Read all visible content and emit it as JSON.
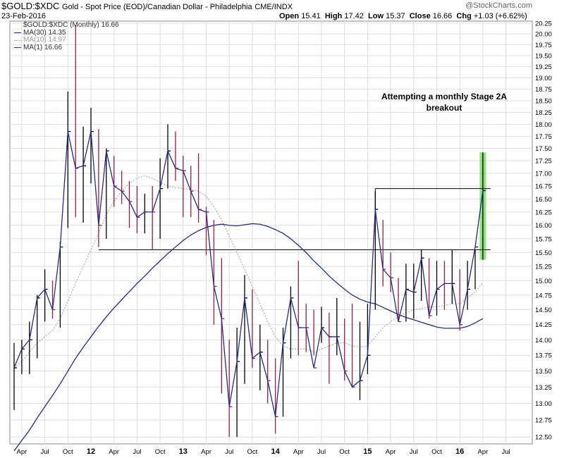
{
  "header": {
    "symbol": "$GOLD:$XDC",
    "description": "Gold - Spot Price (EOD)/Canadian Dollar - Philadelphia",
    "exchange": "CME/INDX",
    "date": "23-Feb-2016",
    "watermark": "@StockCharts.com",
    "open_label": "Open",
    "open_value": "15.41",
    "high_label": "High",
    "high_value": "17.42",
    "low_label": "Low",
    "low_value": "15.37",
    "close_label": "Close",
    "close_value": "16.66",
    "chg_label": "Chg",
    "chg_value": "+1.03 (+6.62%)"
  },
  "legend": [
    {
      "text": "$GOLD:$XDC (Monthly) 16.66",
      "style": "none",
      "color": "#000000"
    },
    {
      "text": "MA(30) 14.35",
      "style": "solid",
      "color": "#1f2d8a"
    },
    {
      "text": "MA(10) 14.97",
      "style": "dotted",
      "color": "#999999"
    },
    {
      "text": "MA(1) 16.66",
      "style": "solid",
      "color": "#1f2d8a"
    }
  ],
  "annotation": {
    "line1": "Attempting a monthly Stage 2A",
    "line2": "breakout"
  },
  "colors": {
    "up_bar": "#000000",
    "down_bar": "#9b1b4b",
    "ma_line": "#1f2d8a",
    "ma10_line": "#aaaaaa",
    "highlight": "#7ddc6a",
    "grid": "#dddddd"
  },
  "chart_data": {
    "type": "ohlc",
    "frequency": "monthly",
    "ylim": [
      12.4,
      20.3
    ],
    "yscale": "log",
    "y_ticks": [
      12.5,
      12.75,
      13.0,
      13.25,
      13.5,
      13.75,
      14.0,
      14.25,
      14.5,
      14.75,
      15.0,
      15.25,
      15.5,
      15.75,
      16.0,
      16.25,
      16.5,
      16.75,
      17.0,
      17.25,
      17.5,
      17.75,
      18.0,
      18.25,
      18.5,
      18.75,
      19.0,
      19.25,
      19.5,
      19.75,
      20.0,
      20.25
    ],
    "x_ticks": [
      {
        "label": "Apr",
        "index": 1
      },
      {
        "label": "Jul",
        "index": 4
      },
      {
        "label": "Oct",
        "index": 7
      },
      {
        "label": "12",
        "index": 10,
        "bold": true
      },
      {
        "label": "Apr",
        "index": 13
      },
      {
        "label": "Jul",
        "index": 16
      },
      {
        "label": "Oct",
        "index": 19
      },
      {
        "label": "13",
        "index": 22,
        "bold": true
      },
      {
        "label": "Apr",
        "index": 25
      },
      {
        "label": "Jul",
        "index": 28
      },
      {
        "label": "Oct",
        "index": 31
      },
      {
        "label": "14",
        "index": 34,
        "bold": true
      },
      {
        "label": "Apr",
        "index": 37
      },
      {
        "label": "Jul",
        "index": 40
      },
      {
        "label": "Oct",
        "index": 43
      },
      {
        "label": "15",
        "index": 46,
        "bold": true
      },
      {
        "label": "Apr",
        "index": 49
      },
      {
        "label": "Jul",
        "index": 52
      },
      {
        "label": "Oct",
        "index": 55
      },
      {
        "label": "16",
        "index": 58,
        "bold": true
      },
      {
        "label": "Apr",
        "index": 61
      },
      {
        "label": "Jul",
        "index": 64
      }
    ],
    "bars": [
      {
        "h": 13.95,
        "l": 12.9,
        "c": 13.55,
        "up": true
      },
      {
        "h": 14.0,
        "l": 13.45,
        "c": 13.85,
        "up": true
      },
      {
        "h": 14.3,
        "l": 13.45,
        "c": 14.0,
        "up": true
      },
      {
        "h": 14.75,
        "l": 13.7,
        "c": 14.7,
        "up": true
      },
      {
        "h": 15.2,
        "l": 14.3,
        "c": 14.85,
        "up": true
      },
      {
        "h": 15.0,
        "l": 14.35,
        "c": 14.5,
        "up": false
      },
      {
        "h": 15.7,
        "l": 14.2,
        "c": 15.6,
        "up": true
      },
      {
        "h": 18.7,
        "l": 15.95,
        "c": 17.85,
        "up": true
      },
      {
        "h": 20.2,
        "l": 16.15,
        "c": 17.1,
        "up": false
      },
      {
        "h": 17.95,
        "l": 16.05,
        "c": 17.15,
        "up": true
      },
      {
        "h": 18.35,
        "l": 16.8,
        "c": 17.85,
        "up": true
      },
      {
        "h": 17.9,
        "l": 15.6,
        "c": 16.0,
        "up": false
      },
      {
        "h": 17.5,
        "l": 15.75,
        "c": 17.45,
        "up": true
      },
      {
        "h": 17.35,
        "l": 16.35,
        "c": 16.75,
        "up": false
      },
      {
        "h": 17.05,
        "l": 16.4,
        "c": 16.65,
        "up": false
      },
      {
        "h": 16.85,
        "l": 15.95,
        "c": 16.45,
        "up": false
      },
      {
        "h": 16.75,
        "l": 15.85,
        "c": 16.15,
        "up": false
      },
      {
        "h": 16.6,
        "l": 15.85,
        "c": 16.25,
        "up": true
      },
      {
        "h": 16.75,
        "l": 15.55,
        "c": 16.25,
        "up": false
      },
      {
        "h": 17.3,
        "l": 15.75,
        "c": 16.7,
        "up": true
      },
      {
        "h": 18.0,
        "l": 16.7,
        "c": 17.45,
        "up": true
      },
      {
        "h": 17.85,
        "l": 16.85,
        "c": 17.1,
        "up": false
      },
      {
        "h": 17.35,
        "l": 16.15,
        "c": 17.05,
        "up": false
      },
      {
        "h": 17.15,
        "l": 16.15,
        "c": 16.65,
        "up": false
      },
      {
        "h": 17.4,
        "l": 16.05,
        "c": 16.3,
        "up": false
      },
      {
        "h": 16.35,
        "l": 15.45,
        "c": 16.25,
        "up": false
      },
      {
        "h": 16.1,
        "l": 14.25,
        "c": 14.9,
        "up": false
      },
      {
        "h": 15.4,
        "l": 13.15,
        "c": 14.35,
        "up": false
      },
      {
        "h": 14.0,
        "l": 12.5,
        "c": 12.95,
        "up": false
      },
      {
        "h": 14.2,
        "l": 12.5,
        "c": 13.65,
        "up": true
      },
      {
        "h": 15.1,
        "l": 13.3,
        "c": 14.7,
        "up": true
      },
      {
        "h": 14.85,
        "l": 13.55,
        "c": 13.7,
        "up": false
      },
      {
        "h": 14.25,
        "l": 13.2,
        "c": 13.8,
        "up": true
      },
      {
        "h": 14.0,
        "l": 13.0,
        "c": 13.35,
        "up": false
      },
      {
        "h": 13.7,
        "l": 12.55,
        "c": 12.8,
        "up": false
      },
      {
        "h": 14.2,
        "l": 12.8,
        "c": 13.95,
        "up": true
      },
      {
        "h": 14.9,
        "l": 13.7,
        "c": 14.7,
        "up": true
      },
      {
        "h": 15.35,
        "l": 13.75,
        "c": 14.2,
        "up": false
      },
      {
        "h": 14.6,
        "l": 13.8,
        "c": 14.2,
        "up": false
      },
      {
        "h": 14.5,
        "l": 13.75,
        "c": 13.55,
        "up": false
      },
      {
        "h": 14.55,
        "l": 13.95,
        "c": 14.2,
        "up": true
      },
      {
        "h": 14.45,
        "l": 13.3,
        "c": 14.05,
        "up": false
      },
      {
        "h": 14.7,
        "l": 13.75,
        "c": 14.05,
        "up": true
      },
      {
        "h": 14.35,
        "l": 13.35,
        "c": 13.5,
        "up": false
      },
      {
        "h": 14.6,
        "l": 13.25,
        "c": 13.25,
        "up": false
      },
      {
        "h": 14.3,
        "l": 13.05,
        "c": 13.35,
        "up": true
      },
      {
        "h": 14.6,
        "l": 13.45,
        "c": 13.75,
        "up": true
      },
      {
        "h": 16.65,
        "l": 14.5,
        "c": 16.3,
        "up": true
      },
      {
        "h": 16.1,
        "l": 14.9,
        "c": 15.2,
        "up": false
      },
      {
        "h": 15.5,
        "l": 14.8,
        "c": 15.05,
        "up": false
      },
      {
        "h": 15.05,
        "l": 14.3,
        "c": 14.3,
        "up": false
      },
      {
        "h": 15.3,
        "l": 14.3,
        "c": 14.85,
        "up": true
      },
      {
        "h": 15.3,
        "l": 14.35,
        "c": 14.8,
        "up": true
      },
      {
        "h": 15.55,
        "l": 14.65,
        "c": 15.4,
        "up": true
      },
      {
        "h": 15.4,
        "l": 14.35,
        "c": 14.4,
        "up": false
      },
      {
        "h": 15.35,
        "l": 14.4,
        "c": 14.85,
        "up": true
      },
      {
        "h": 15.35,
        "l": 14.5,
        "c": 14.95,
        "up": false
      },
      {
        "h": 15.55,
        "l": 14.6,
        "c": 14.95,
        "up": true
      },
      {
        "h": 15.2,
        "l": 14.15,
        "c": 14.25,
        "up": false
      },
      {
        "h": 15.35,
        "l": 14.5,
        "c": 14.85,
        "up": true
      },
      {
        "h": 15.55,
        "l": 14.85,
        "c": 15.6,
        "up": true
      },
      {
        "h": 17.42,
        "l": 15.37,
        "c": 16.66,
        "up": true,
        "highlight": true
      }
    ],
    "ma30": [
      12.3,
      12.45,
      12.6,
      12.78,
      12.95,
      13.12,
      13.3,
      13.5,
      13.7,
      13.88,
      14.05,
      14.22,
      14.38,
      14.53,
      14.67,
      14.81,
      14.95,
      15.08,
      15.22,
      15.35,
      15.48,
      15.6,
      15.72,
      15.82,
      15.9,
      15.96,
      16.0,
      16.02,
      16.0,
      15.99,
      16.01,
      16.03,
      16.02,
      15.98,
      15.92,
      15.85,
      15.75,
      15.63,
      15.5,
      15.35,
      15.22,
      15.08,
      14.96,
      14.85,
      14.75,
      14.68,
      14.63,
      14.6,
      14.54,
      14.48,
      14.42,
      14.37,
      14.33,
      14.29,
      14.25,
      14.21,
      14.19,
      14.19,
      14.19,
      14.22,
      14.28,
      14.35
    ],
    "ma10": [
      13.55,
      13.65,
      13.8,
      13.95,
      14.05,
      14.15,
      14.35,
      14.65,
      14.95,
      15.25,
      15.55,
      15.85,
      16.2,
      16.45,
      16.65,
      16.8,
      16.9,
      16.95,
      16.9,
      16.82,
      16.75,
      16.72,
      16.7,
      16.68,
      16.65,
      16.55,
      16.35,
      16.1,
      15.8,
      15.5,
      15.2,
      14.9,
      14.6,
      14.3,
      14.05,
      13.9,
      13.85,
      13.85,
      13.85,
      13.8,
      13.85,
      13.9,
      13.95,
      13.95,
      13.9,
      13.88,
      13.9,
      14.05,
      14.2,
      14.3,
      14.38,
      14.45,
      14.5,
      14.52,
      14.55,
      14.55,
      14.57,
      14.6,
      14.6,
      14.7,
      14.8,
      14.97
    ],
    "horizontal_lines": [
      {
        "y": 15.55,
        "from_index": 11,
        "to_index": 62
      },
      {
        "y": 16.7,
        "from_index": 47,
        "to_index": 62
      }
    ]
  }
}
